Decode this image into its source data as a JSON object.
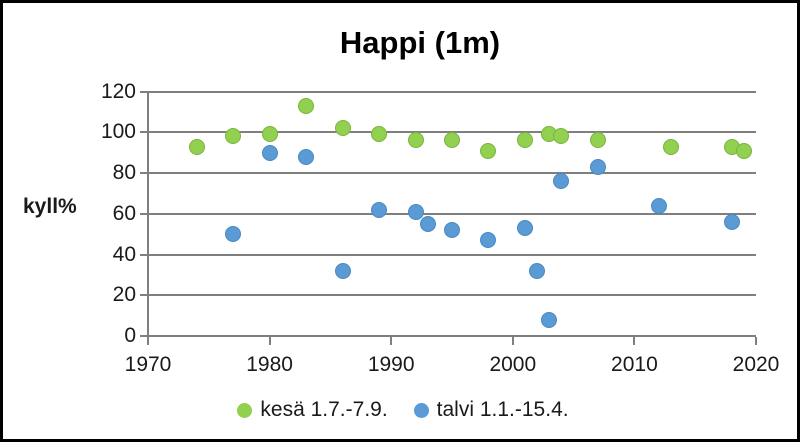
{
  "title": "Happi (1m)",
  "y_axis_title": "kyll%",
  "chart_data": {
    "type": "scatter",
    "title": "Happi (1m)",
    "xlabel": "",
    "ylabel": "kyll%",
    "xlim": [
      1970,
      2020
    ],
    "ylim": [
      0,
      120
    ],
    "x_ticks": [
      1970,
      1980,
      1990,
      2000,
      2010,
      2020
    ],
    "y_ticks": [
      0,
      20,
      40,
      60,
      80,
      100,
      120
    ],
    "grid": "horizontal-only",
    "gridline_color": "#7f7f7f",
    "legend_position": "bottom",
    "series": [
      {
        "name": "kesä 1.7.-7.9.",
        "color": "#92d050",
        "edge": "#7ab33e",
        "points": [
          [
            1974,
            93
          ],
          [
            1977,
            98
          ],
          [
            1980,
            99
          ],
          [
            1983,
            113
          ],
          [
            1986,
            102
          ],
          [
            1989,
            99
          ],
          [
            1992,
            96
          ],
          [
            1995,
            96
          ],
          [
            1998,
            91
          ],
          [
            2001,
            96
          ],
          [
            2003,
            99
          ],
          [
            2004,
            98
          ],
          [
            2007,
            96
          ],
          [
            2013,
            93
          ],
          [
            2018,
            93
          ],
          [
            2019,
            91
          ]
        ]
      },
      {
        "name": "talvi 1.1.-15.4.",
        "color": "#5b9bd5",
        "edge": "#4a88be",
        "points": [
          [
            1977,
            50
          ],
          [
            1980,
            90
          ],
          [
            1983,
            88
          ],
          [
            1986,
            32
          ],
          [
            1989,
            62
          ],
          [
            1992,
            61
          ],
          [
            1993,
            55
          ],
          [
            1995,
            52
          ],
          [
            1998,
            47
          ],
          [
            2001,
            53
          ],
          [
            2002,
            32
          ],
          [
            2003,
            8
          ],
          [
            2004,
            76
          ],
          [
            2007,
            83
          ],
          [
            2012,
            64
          ],
          [
            2018,
            56
          ]
        ]
      }
    ]
  }
}
